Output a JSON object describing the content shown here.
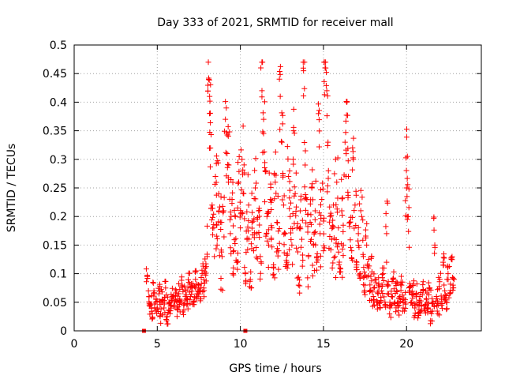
{
  "chart_data": {
    "type": "scatter",
    "title": "Day 333 of 2021, SRMTID for receiver mall",
    "xlabel": "GPS time / hours",
    "ylabel": "SRMTID / TECUs",
    "xlim": [
      0,
      24.5
    ],
    "ylim": [
      0,
      0.5
    ],
    "x_ticks": [
      0,
      5,
      10,
      15,
      20
    ],
    "x_tick_labels": [
      "0",
      "5",
      "10",
      "15",
      "20"
    ],
    "y_ticks": [
      0,
      0.05,
      0.1,
      0.15,
      0.2,
      0.25,
      0.3,
      0.35,
      0.4,
      0.45,
      0.5
    ],
    "y_tick_labels": [
      "0",
      "0.05",
      "0.1",
      "0.15",
      "0.2",
      "0.25",
      "0.3",
      "0.35",
      "0.4",
      "0.45",
      "0.5"
    ],
    "grid": true,
    "marker": "plus",
    "color": "#ff0000",
    "square_markers": [
      {
        "x": 4.2,
        "y": 0.0
      },
      {
        "x": 10.3,
        "y": 0.0
      }
    ],
    "series": [
      {
        "points": [
          [
            4.4,
            0.095
          ],
          [
            4.5,
            0.06
          ],
          [
            4.6,
            0.045
          ],
          [
            4.7,
            0.03
          ],
          [
            4.8,
            0.07
          ],
          [
            4.9,
            0.05
          ],
          [
            5.0,
            0.04
          ],
          [
            5.1,
            0.065
          ],
          [
            5.2,
            0.03
          ],
          [
            5.3,
            0.055
          ],
          [
            5.4,
            0.04
          ],
          [
            5.5,
            0.075
          ],
          [
            5.6,
            0.025
          ],
          [
            5.7,
            0.05
          ],
          [
            5.8,
            0.035
          ],
          [
            5.9,
            0.06
          ],
          [
            6.0,
            0.045
          ],
          [
            6.1,
            0.055
          ],
          [
            6.2,
            0.04
          ],
          [
            6.3,
            0.065
          ],
          [
            6.4,
            0.05
          ],
          [
            6.5,
            0.08
          ],
          [
            6.6,
            0.045
          ],
          [
            6.7,
            0.07
          ],
          [
            6.8,
            0.055
          ],
          [
            6.9,
            0.085
          ],
          [
            7.0,
            0.06
          ],
          [
            7.1,
            0.075
          ],
          [
            7.2,
            0.05
          ],
          [
            7.3,
            0.09
          ],
          [
            7.4,
            0.065
          ],
          [
            7.5,
            0.08
          ],
          [
            7.6,
            0.07
          ],
          [
            7.7,
            0.1
          ],
          [
            7.8,
            0.075
          ],
          [
            7.9,
            0.11
          ],
          [
            8.0,
            0.13
          ],
          [
            8.1,
            0.44
          ],
          [
            8.15,
            0.41
          ],
          [
            8.2,
            0.32
          ],
          [
            8.3,
            0.22
          ],
          [
            8.4,
            0.18
          ],
          [
            8.5,
            0.27
          ],
          [
            8.6,
            0.15
          ],
          [
            8.7,
            0.24
          ],
          [
            8.8,
            0.19
          ],
          [
            8.9,
            0.13
          ],
          [
            9.0,
            0.21
          ],
          [
            9.1,
            0.37
          ],
          [
            9.2,
            0.31
          ],
          [
            9.3,
            0.29
          ],
          [
            9.4,
            0.17
          ],
          [
            9.5,
            0.23
          ],
          [
            9.6,
            0.14
          ],
          [
            9.7,
            0.2
          ],
          [
            9.8,
            0.12
          ],
          [
            9.9,
            0.26
          ],
          [
            10.0,
            0.18
          ],
          [
            10.1,
            0.3
          ],
          [
            10.2,
            0.24
          ],
          [
            10.3,
            0.1
          ],
          [
            10.4,
            0.16
          ],
          [
            10.5,
            0.22
          ],
          [
            10.6,
            0.09
          ],
          [
            10.7,
            0.19
          ],
          [
            10.8,
            0.14
          ],
          [
            10.9,
            0.25
          ],
          [
            11.0,
            0.17
          ],
          [
            11.1,
            0.21
          ],
          [
            11.2,
            0.13
          ],
          [
            11.3,
            0.42
          ],
          [
            11.4,
            0.37
          ],
          [
            11.5,
            0.28
          ],
          [
            11.6,
            0.2
          ],
          [
            11.7,
            0.15
          ],
          [
            11.8,
            0.23
          ],
          [
            11.9,
            0.18
          ],
          [
            12.0,
            0.11
          ],
          [
            12.1,
            0.26
          ],
          [
            12.2,
            0.19
          ],
          [
            12.3,
            0.14
          ],
          [
            12.4,
            0.41
          ],
          [
            12.5,
            0.33
          ],
          [
            12.6,
            0.22
          ],
          [
            12.7,
            0.17
          ],
          [
            12.8,
            0.12
          ],
          [
            12.9,
            0.27
          ],
          [
            13.0,
            0.2
          ],
          [
            13.1,
            0.15
          ],
          [
            13.2,
            0.35
          ],
          [
            13.3,
            0.24
          ],
          [
            13.4,
            0.18
          ],
          [
            13.5,
            0.08
          ],
          [
            13.6,
            0.21
          ],
          [
            13.7,
            0.16
          ],
          [
            13.8,
            0.455
          ],
          [
            13.9,
            0.29
          ],
          [
            14.0,
            0.23
          ],
          [
            14.1,
            0.13
          ],
          [
            14.2,
            0.19
          ],
          [
            14.3,
            0.25
          ],
          [
            14.4,
            0.15
          ],
          [
            14.5,
            0.21
          ],
          [
            14.6,
            0.12
          ],
          [
            14.7,
            0.38
          ],
          [
            14.8,
            0.17
          ],
          [
            14.9,
            0.23
          ],
          [
            15.0,
            0.14
          ],
          [
            15.1,
            0.46
          ],
          [
            15.2,
            0.42
          ],
          [
            15.3,
            0.28
          ],
          [
            15.4,
            0.2
          ],
          [
            15.5,
            0.16
          ],
          [
            15.6,
            0.22
          ],
          [
            15.7,
            0.13
          ],
          [
            15.8,
            0.26
          ],
          [
            15.9,
            0.18
          ],
          [
            16.0,
            0.11
          ],
          [
            16.1,
            0.21
          ],
          [
            16.2,
            0.15
          ],
          [
            16.3,
            0.33
          ],
          [
            16.4,
            0.4
          ],
          [
            16.5,
            0.27
          ],
          [
            16.6,
            0.19
          ],
          [
            16.7,
            0.14
          ],
          [
            16.8,
            0.3
          ],
          [
            16.9,
            0.22
          ],
          [
            17.0,
            0.12
          ],
          [
            17.1,
            0.17
          ],
          [
            17.2,
            0.1
          ],
          [
            17.3,
            0.2
          ],
          [
            17.4,
            0.13
          ],
          [
            17.5,
            0.08
          ],
          [
            17.6,
            0.15
          ],
          [
            17.7,
            0.11
          ],
          [
            17.8,
            0.07
          ],
          [
            17.9,
            0.13
          ],
          [
            18.0,
            0.06
          ],
          [
            18.1,
            0.09
          ],
          [
            18.2,
            0.05
          ],
          [
            18.3,
            0.08
          ],
          [
            18.4,
            0.04
          ],
          [
            18.5,
            0.07
          ],
          [
            18.6,
            0.1
          ],
          [
            18.7,
            0.05
          ],
          [
            18.8,
            0.17
          ],
          [
            18.9,
            0.08
          ],
          [
            19.0,
            0.04
          ],
          [
            19.1,
            0.06
          ],
          [
            19.2,
            0.09
          ],
          [
            19.3,
            0.05
          ],
          [
            19.4,
            0.07
          ],
          [
            19.5,
            0.035
          ],
          [
            19.6,
            0.06
          ],
          [
            19.7,
            0.08
          ],
          [
            19.8,
            0.04
          ],
          [
            19.9,
            0.05
          ],
          [
            20.0,
            0.25
          ],
          [
            20.05,
            0.305
          ],
          [
            20.1,
            0.2
          ],
          [
            20.2,
            0.07
          ],
          [
            20.3,
            0.05
          ],
          [
            20.4,
            0.08
          ],
          [
            20.5,
            0.04
          ],
          [
            20.6,
            0.065
          ],
          [
            20.7,
            0.03
          ],
          [
            20.8,
            0.06
          ],
          [
            20.9,
            0.045
          ],
          [
            21.0,
            0.07
          ],
          [
            21.1,
            0.035
          ],
          [
            21.2,
            0.055
          ],
          [
            21.3,
            0.04
          ],
          [
            21.4,
            0.075
          ],
          [
            21.5,
            0.03
          ],
          [
            21.6,
            0.05
          ],
          [
            21.7,
            0.15
          ],
          [
            21.8,
            0.06
          ],
          [
            21.9,
            0.045
          ],
          [
            22.0,
            0.09
          ],
          [
            22.1,
            0.055
          ],
          [
            22.2,
            0.12
          ],
          [
            22.3,
            0.07
          ],
          [
            22.4,
            0.05
          ],
          [
            22.5,
            0.1
          ],
          [
            22.6,
            0.065
          ],
          [
            22.7,
            0.125
          ],
          [
            22.8,
            0.08
          ]
        ]
      }
    ]
  }
}
